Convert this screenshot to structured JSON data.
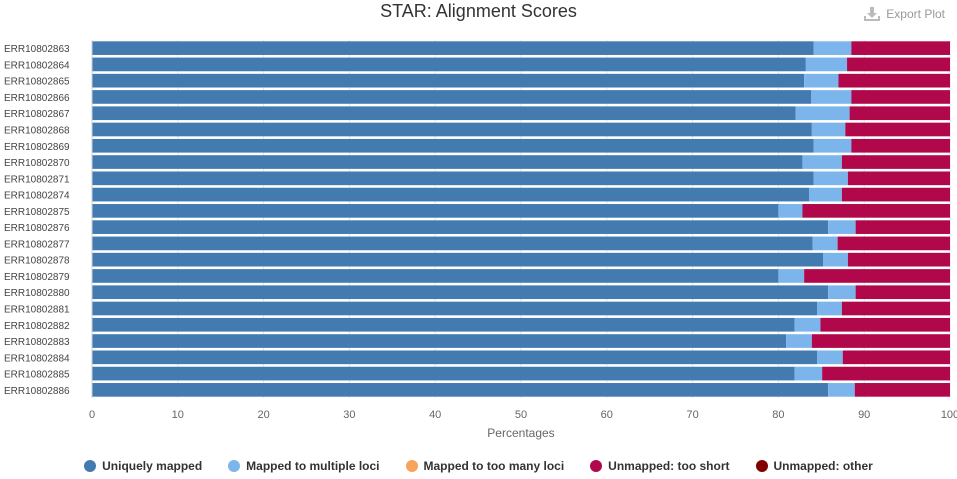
{
  "header": {
    "export_label": "Export Plot",
    "export_icon": "download-icon"
  },
  "chart_data": {
    "type": "bar",
    "orientation": "horizontal",
    "stacked": true,
    "title": "STAR: Alignment Scores",
    "xlabel": "Percentages",
    "ylabel": "",
    "xlim": [
      0,
      100
    ],
    "xticks": [
      0,
      10,
      20,
      30,
      40,
      50,
      60,
      70,
      80,
      90,
      100
    ],
    "grid": true,
    "legend_position": "bottom",
    "categories": [
      "ERR10802863",
      "ERR10802864",
      "ERR10802865",
      "ERR10802866",
      "ERR10802867",
      "ERR10802868",
      "ERR10802869",
      "ERR10802870",
      "ERR10802871",
      "ERR10802874",
      "ERR10802875",
      "ERR10802876",
      "ERR10802877",
      "ERR10802878",
      "ERR10802879",
      "ERR10802880",
      "ERR10802881",
      "ERR10802882",
      "ERR10802883",
      "ERR10802884",
      "ERR10802885",
      "ERR10802886"
    ],
    "series": [
      {
        "name": "Uniquely mapped",
        "color": "#437bb1",
        "values": [
          84.1,
          83.2,
          83.0,
          83.8,
          82.0,
          83.9,
          84.1,
          82.8,
          84.1,
          83.6,
          80.0,
          85.8,
          84.0,
          85.2,
          80.0,
          85.8,
          84.5,
          81.9,
          80.9,
          84.5,
          81.9,
          85.8
        ]
      },
      {
        "name": "Mapped to multiple loci",
        "color": "#7cb5ec",
        "values": [
          4.4,
          4.8,
          4.0,
          4.7,
          6.3,
          3.9,
          4.4,
          4.6,
          4.0,
          3.8,
          2.8,
          3.2,
          2.9,
          2.9,
          3.0,
          3.2,
          2.9,
          3.0,
          3.0,
          3.0,
          3.2,
          3.1
        ]
      },
      {
        "name": "Mapped to too many loci",
        "color": "#f7a35c",
        "values": [
          0,
          0,
          0,
          0,
          0,
          0,
          0,
          0,
          0,
          0,
          0,
          0,
          0,
          0,
          0,
          0,
          0,
          0,
          0,
          0,
          0,
          0
        ]
      },
      {
        "name": "Unmapped: too short",
        "color": "#b1084c",
        "values": [
          11.5,
          12.0,
          13.0,
          11.5,
          11.7,
          12.2,
          11.5,
          12.6,
          11.9,
          12.6,
          17.2,
          11.0,
          13.1,
          11.9,
          17.0,
          11.0,
          12.6,
          15.1,
          16.1,
          12.5,
          14.9,
          11.1
        ]
      },
      {
        "name": "Unmapped: other",
        "color": "#7f0000",
        "values": [
          0,
          0,
          0,
          0,
          0,
          0,
          0,
          0,
          0,
          0,
          0,
          0,
          0,
          0,
          0,
          0,
          0,
          0,
          0,
          0,
          0,
          0
        ]
      }
    ]
  }
}
